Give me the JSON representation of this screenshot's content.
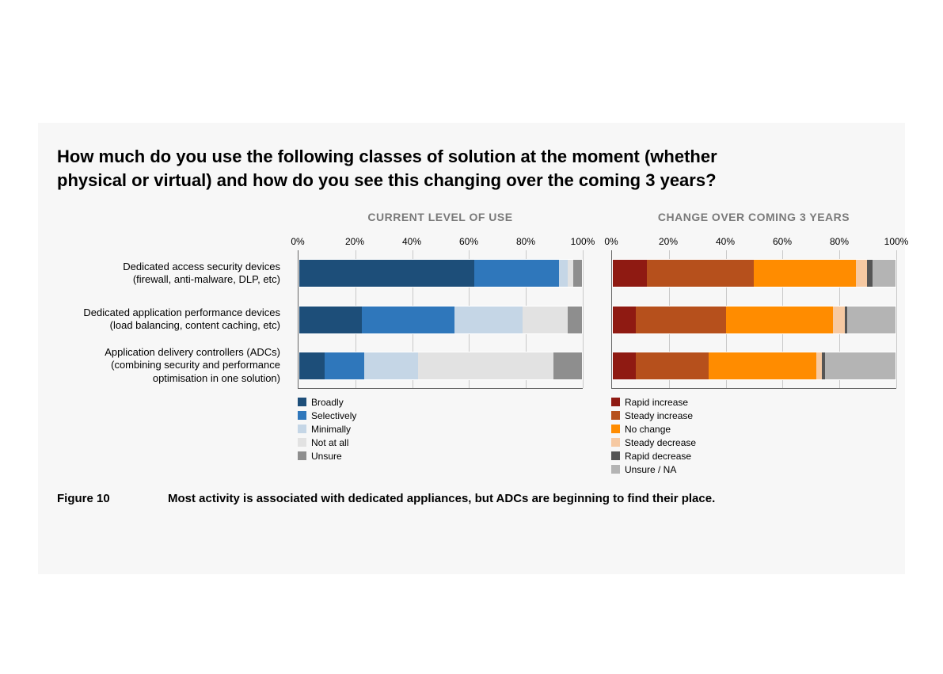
{
  "panel": {
    "background_color": "#f7f7f7"
  },
  "question": "How much do you use the following classes of solution at the moment (whether physical or virtual) and how do you see this changing over the coming 3 years?",
  "row_labels": [
    [
      "Dedicated access security devices",
      "(firewall, anti-malware, DLP, etc)"
    ],
    [
      "Dedicated application performance devices",
      "(load balancing, content caching, etc)"
    ],
    [
      "Application delivery controllers (ADCs)",
      "(combining security and performance",
      "optimisation in one solution)"
    ]
  ],
  "axis": {
    "ticks": [
      0,
      20,
      40,
      60,
      80,
      100
    ],
    "tick_labels": [
      "0%",
      "20%",
      "40%",
      "60%",
      "80%",
      "100%"
    ],
    "xlim": [
      0,
      100
    ],
    "grid_color": "#c9c9c9"
  },
  "charts": [
    {
      "title": "CURRENT LEVEL OF USE",
      "type": "stacked-bar-horizontal",
      "series": [
        {
          "label": "Broadly",
          "color": "#1d4e79"
        },
        {
          "label": "Selectively",
          "color": "#2f77bb"
        },
        {
          "label": "Minimally",
          "color": "#c5d6e6"
        },
        {
          "label": "Not at all",
          "color": "#e2e2e2"
        },
        {
          "label": "Unsure",
          "color": "#8e8e8e"
        }
      ],
      "rows": [
        [
          62,
          30,
          3,
          2,
          3
        ],
        [
          22,
          33,
          24,
          16,
          5
        ],
        [
          9,
          14,
          19,
          48,
          10
        ]
      ]
    },
    {
      "title": "CHANGE OVER COMING 3 YEARS",
      "type": "stacked-bar-horizontal",
      "series": [
        {
          "label": "Rapid increase",
          "color": "#8f1a12"
        },
        {
          "label": "Steady increase",
          "color": "#b6501c"
        },
        {
          "label": "No change",
          "color": "#ff8c00"
        },
        {
          "label": "Steady decrease",
          "color": "#f6c9a2"
        },
        {
          "label": "Rapid decrease",
          "color": "#555555"
        },
        {
          "label": "Unsure / NA",
          "color": "#b4b4b4"
        }
      ],
      "rows": [
        [
          12,
          38,
          36,
          4,
          2,
          8
        ],
        [
          8,
          32,
          38,
          4,
          1,
          17
        ],
        [
          8,
          26,
          38,
          2,
          1,
          25
        ]
      ]
    }
  ],
  "caption": {
    "label": "Figure 10",
    "text": "Most activity is associated with dedicated appliances, but ADCs are beginning to find their place."
  }
}
